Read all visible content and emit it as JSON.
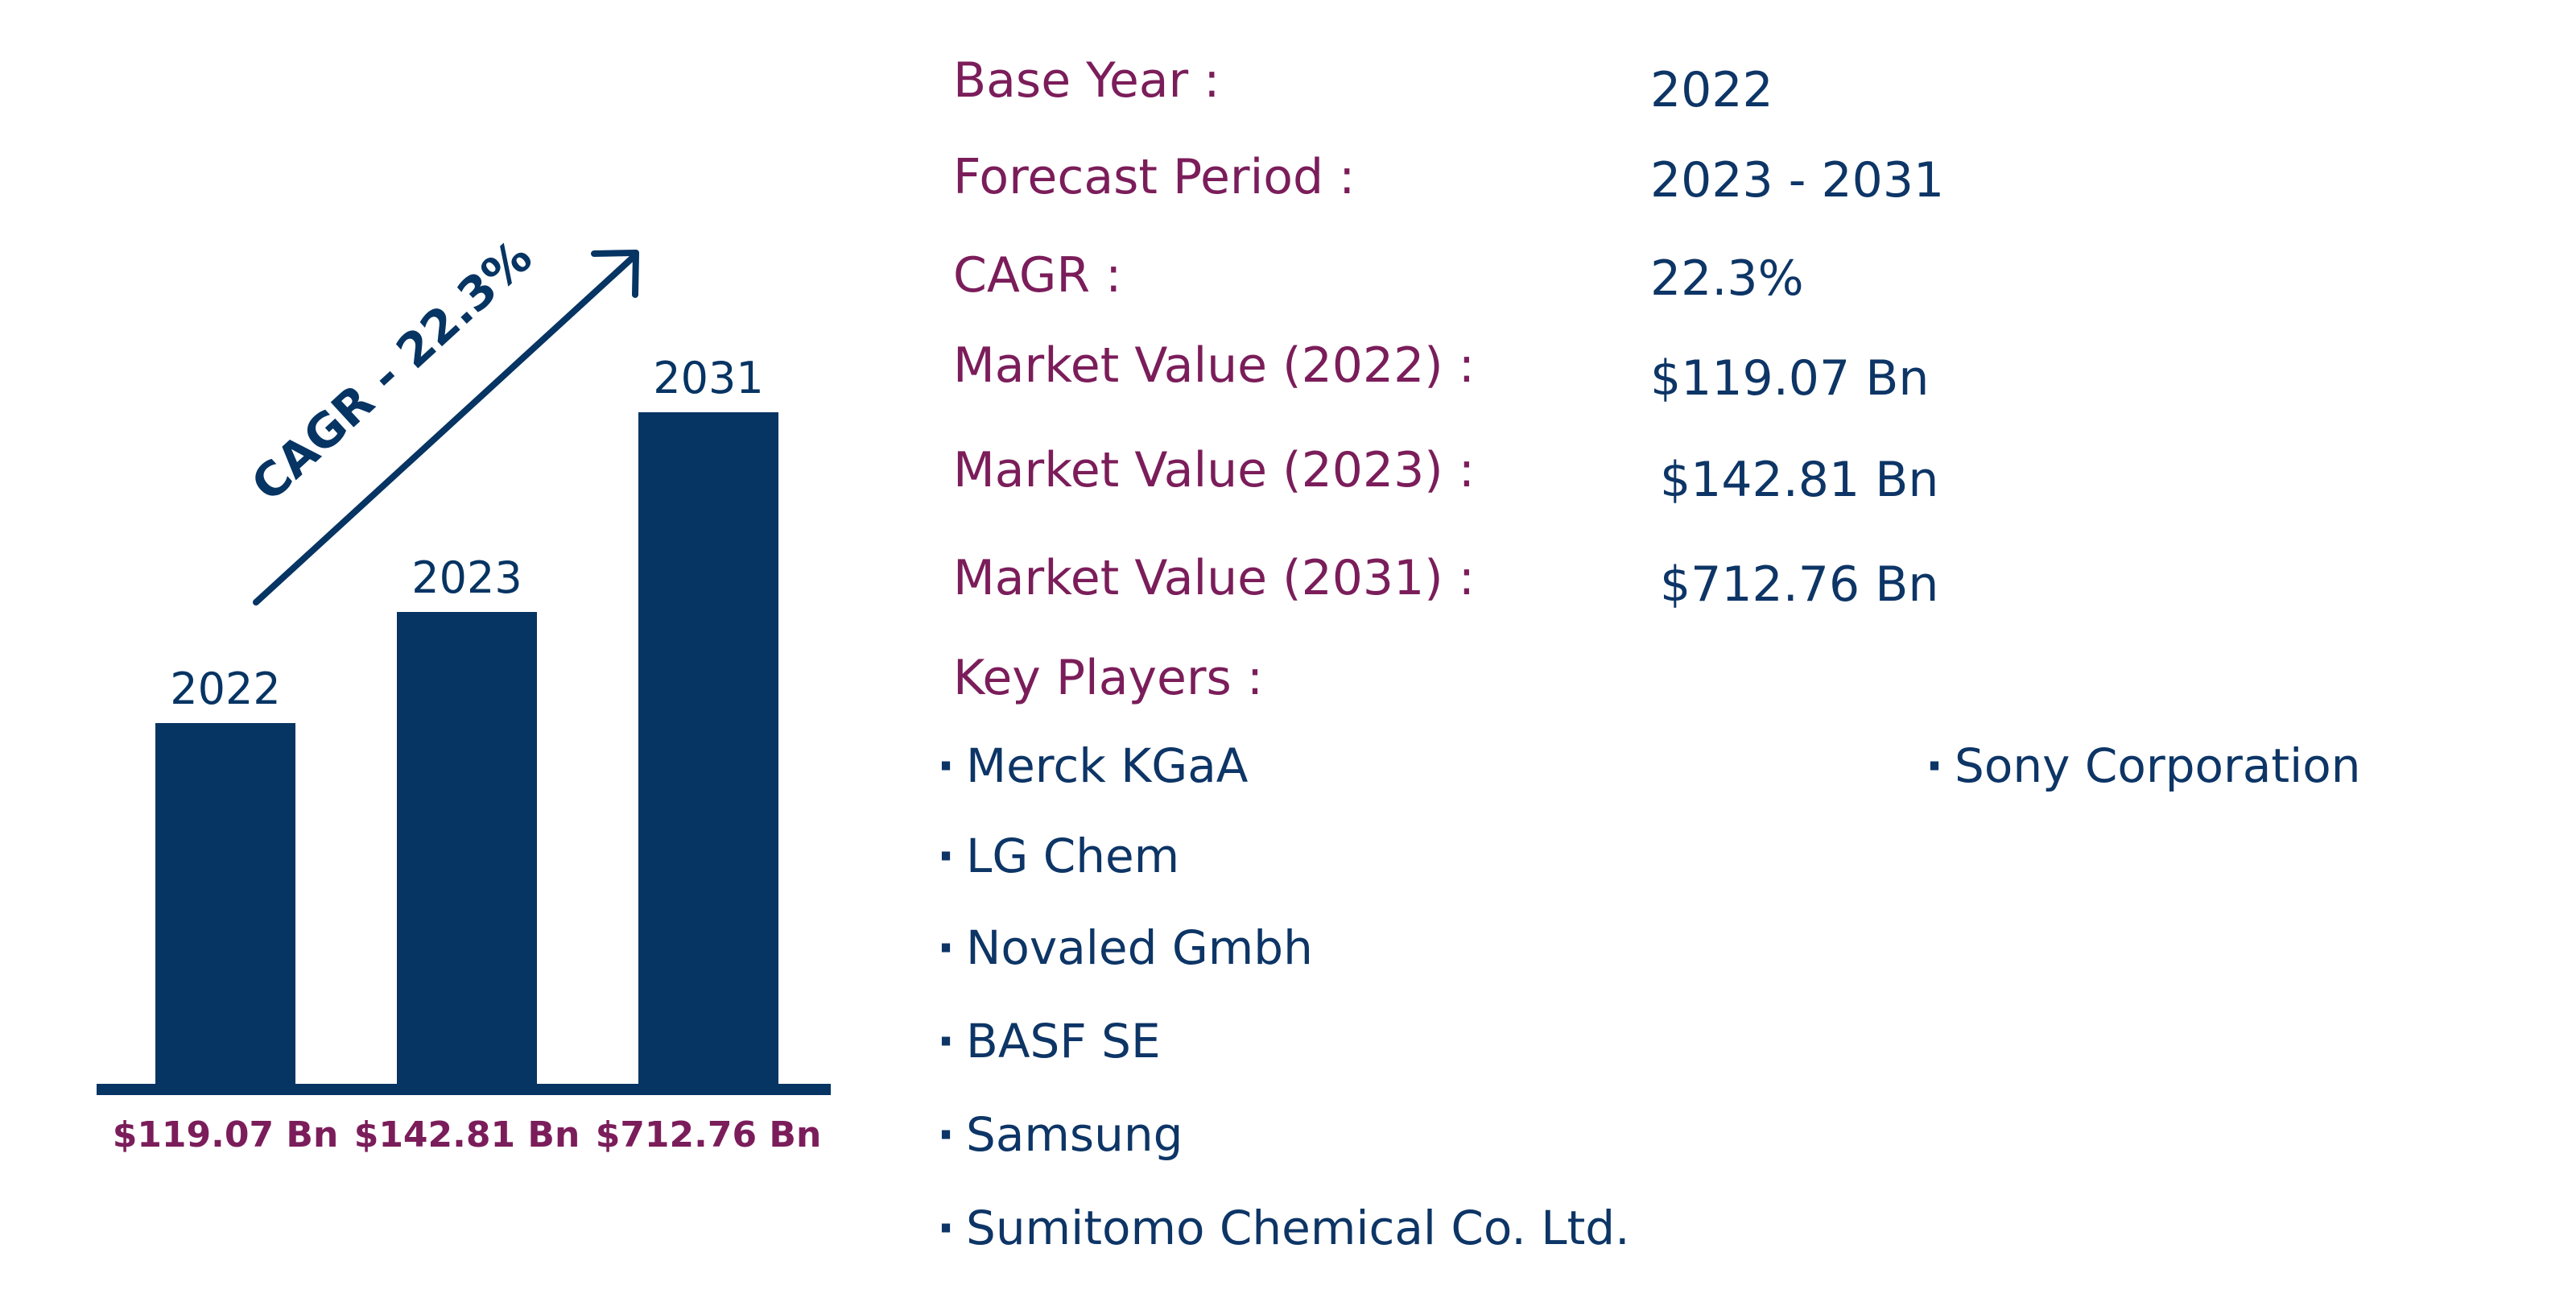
{
  "chart_data": {
    "type": "bar",
    "categories": [
      "2022",
      "2023",
      "2031"
    ],
    "values": [
      119.07,
      142.81,
      712.76
    ],
    "value_labels": [
      "$119.07 Bn",
      "$142.81 Bn",
      "$712.76 Bn"
    ],
    "unit": "Bn",
    "arrow_annotation": "CAGR - 22.3%",
    "title": "",
    "xlabel": "",
    "ylabel": ""
  },
  "colors": {
    "bar": "#063463",
    "label_purple": "#7b1d5a",
    "value_blue": "#0d3566"
  },
  "info": {
    "base_year_label": "Base Year :",
    "base_year_value": "2022",
    "forecast_label": "Forecast Period :",
    "forecast_value": "2023 - 2031",
    "cagr_label": "CAGR :",
    "cagr_value": "22.3%",
    "mv2022_label": "Market Value (2022) :",
    "mv2022_value": "$119.07 Bn",
    "mv2023_label": "Market Value (2023) :",
    "mv2023_value": "$142.81 Bn",
    "mv2031_label": "Market Value (2031) :",
    "mv2031_value": "$712.76 Bn",
    "key_players_label": "Key Players :"
  },
  "key_players": [
    "Merck KGaA",
    "LG Chem",
    "Novaled Gmbh",
    "BASF SE",
    "Samsung",
    "Sumitomo Chemical Co. Ltd.",
    "Sony Corporation"
  ],
  "bullet": "·"
}
